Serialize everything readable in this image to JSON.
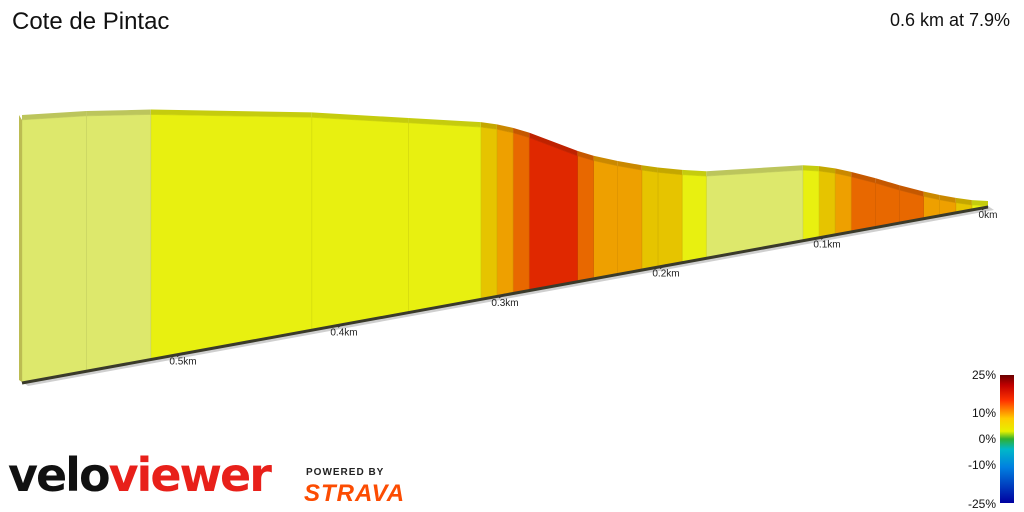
{
  "segment": {
    "name": "Cote de Pintac",
    "summary": "0.6 km at 7.9%"
  },
  "legend": {
    "labels": [
      "25%",
      "10%",
      "0%",
      "-10%",
      "-25%"
    ]
  },
  "branding": {
    "logo_part1": "velo",
    "logo_part2": "viewer",
    "powered_by": "POWERED BY",
    "strava": "STRAVA"
  },
  "chart_data": {
    "type": "area",
    "title": "Cote de Pintac",
    "distance_unit": "km",
    "x_ticks": [
      "0km",
      "0.1km",
      "0.2km",
      "0.3km",
      "0.4km",
      "0.5km"
    ],
    "x_tick_values": [
      0,
      0.1,
      0.2,
      0.3,
      0.4,
      0.5
    ],
    "total_distance_km": 0.6,
    "average_gradient_pct": 7.9,
    "gradient_colors": {
      "1-5": "#dde86c",
      "5-7": "#e8f010",
      "7-9": "#e6c400",
      "9-11": "#eea000",
      "11-13": "#e86800",
      "13+": "#e02800"
    },
    "segments": [
      {
        "from_km": 0.0,
        "to_km": 0.01,
        "gradient_pct": 6
      },
      {
        "from_km": 0.01,
        "to_km": 0.02,
        "gradient_pct": 8
      },
      {
        "from_km": 0.02,
        "to_km": 0.03,
        "gradient_pct": 9
      },
      {
        "from_km": 0.03,
        "to_km": 0.04,
        "gradient_pct": 10
      },
      {
        "from_km": 0.04,
        "to_km": 0.055,
        "gradient_pct": 11
      },
      {
        "from_km": 0.055,
        "to_km": 0.07,
        "gradient_pct": 12
      },
      {
        "from_km": 0.07,
        "to_km": 0.085,
        "gradient_pct": 11
      },
      {
        "from_km": 0.085,
        "to_km": 0.095,
        "gradient_pct": 10
      },
      {
        "from_km": 0.095,
        "to_km": 0.105,
        "gradient_pct": 8
      },
      {
        "from_km": 0.105,
        "to_km": 0.115,
        "gradient_pct": 6
      },
      {
        "from_km": 0.115,
        "to_km": 0.175,
        "gradient_pct": 3
      },
      {
        "from_km": 0.175,
        "to_km": 0.19,
        "gradient_pct": 6
      },
      {
        "from_km": 0.19,
        "to_km": 0.205,
        "gradient_pct": 7
      },
      {
        "from_km": 0.205,
        "to_km": 0.215,
        "gradient_pct": 8
      },
      {
        "from_km": 0.215,
        "to_km": 0.23,
        "gradient_pct": 9
      },
      {
        "from_km": 0.23,
        "to_km": 0.245,
        "gradient_pct": 10
      },
      {
        "from_km": 0.245,
        "to_km": 0.255,
        "gradient_pct": 12
      },
      {
        "from_km": 0.255,
        "to_km": 0.285,
        "gradient_pct": 14
      },
      {
        "from_km": 0.285,
        "to_km": 0.295,
        "gradient_pct": 12
      },
      {
        "from_km": 0.295,
        "to_km": 0.305,
        "gradient_pct": 10
      },
      {
        "from_km": 0.305,
        "to_km": 0.315,
        "gradient_pct": 8
      },
      {
        "from_km": 0.315,
        "to_km": 0.36,
        "gradient_pct": 6
      },
      {
        "from_km": 0.36,
        "to_km": 0.42,
        "gradient_pct": 6
      },
      {
        "from_km": 0.42,
        "to_km": 0.52,
        "gradient_pct": 5
      },
      {
        "from_km": 0.52,
        "to_km": 0.56,
        "gradient_pct": 4
      },
      {
        "from_km": 0.56,
        "to_km": 0.6,
        "gradient_pct": 3
      }
    ]
  }
}
